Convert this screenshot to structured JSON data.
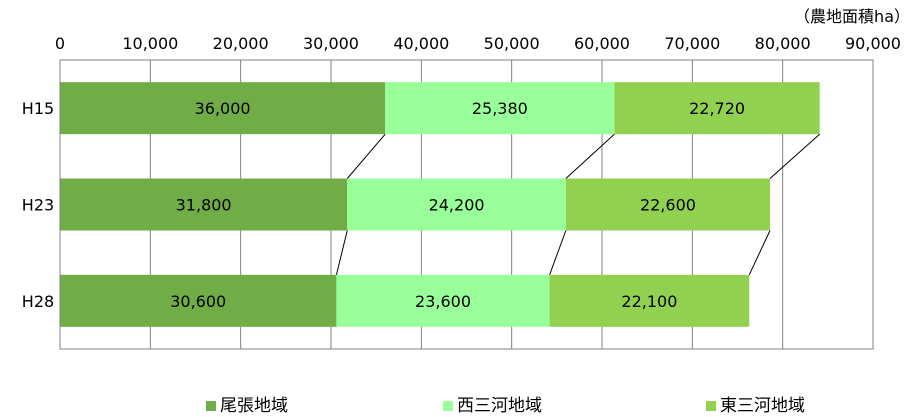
{
  "chart_data": {
    "type": "bar",
    "orientation": "horizontal",
    "stacked": true,
    "unit_label": "（農地面積ha）",
    "categories": [
      "H15",
      "H23",
      "H28"
    ],
    "series": [
      {
        "name": "尾張地域",
        "values": [
          36000,
          31800,
          30600
        ],
        "labels": [
          "36,000",
          "31,800",
          "30,600"
        ],
        "color": "#70ad47"
      },
      {
        "name": "西三河地域",
        "values": [
          25380,
          24200,
          23600
        ],
        "labels": [
          "25,380",
          "24,200",
          "23,600"
        ],
        "color": "#99ff99"
      },
      {
        "name": "東三河地域",
        "values": [
          22720,
          22600,
          22100
        ],
        "labels": [
          "22,720",
          "22,600",
          "22,100"
        ],
        "color": "#92d050"
      }
    ],
    "xlim": [
      0,
      90000
    ],
    "x_ticks": [
      0,
      10000,
      20000,
      30000,
      40000,
      50000,
      60000,
      70000,
      80000,
      90000
    ],
    "x_tick_labels": [
      "0",
      "10,000",
      "20,000",
      "30,000",
      "40,000",
      "50,000",
      "60,000",
      "70,000",
      "80,000",
      "90,000"
    ],
    "x_axis_position": "top",
    "grid": "vertical",
    "series_lines": true,
    "legend_position": "bottom"
  }
}
